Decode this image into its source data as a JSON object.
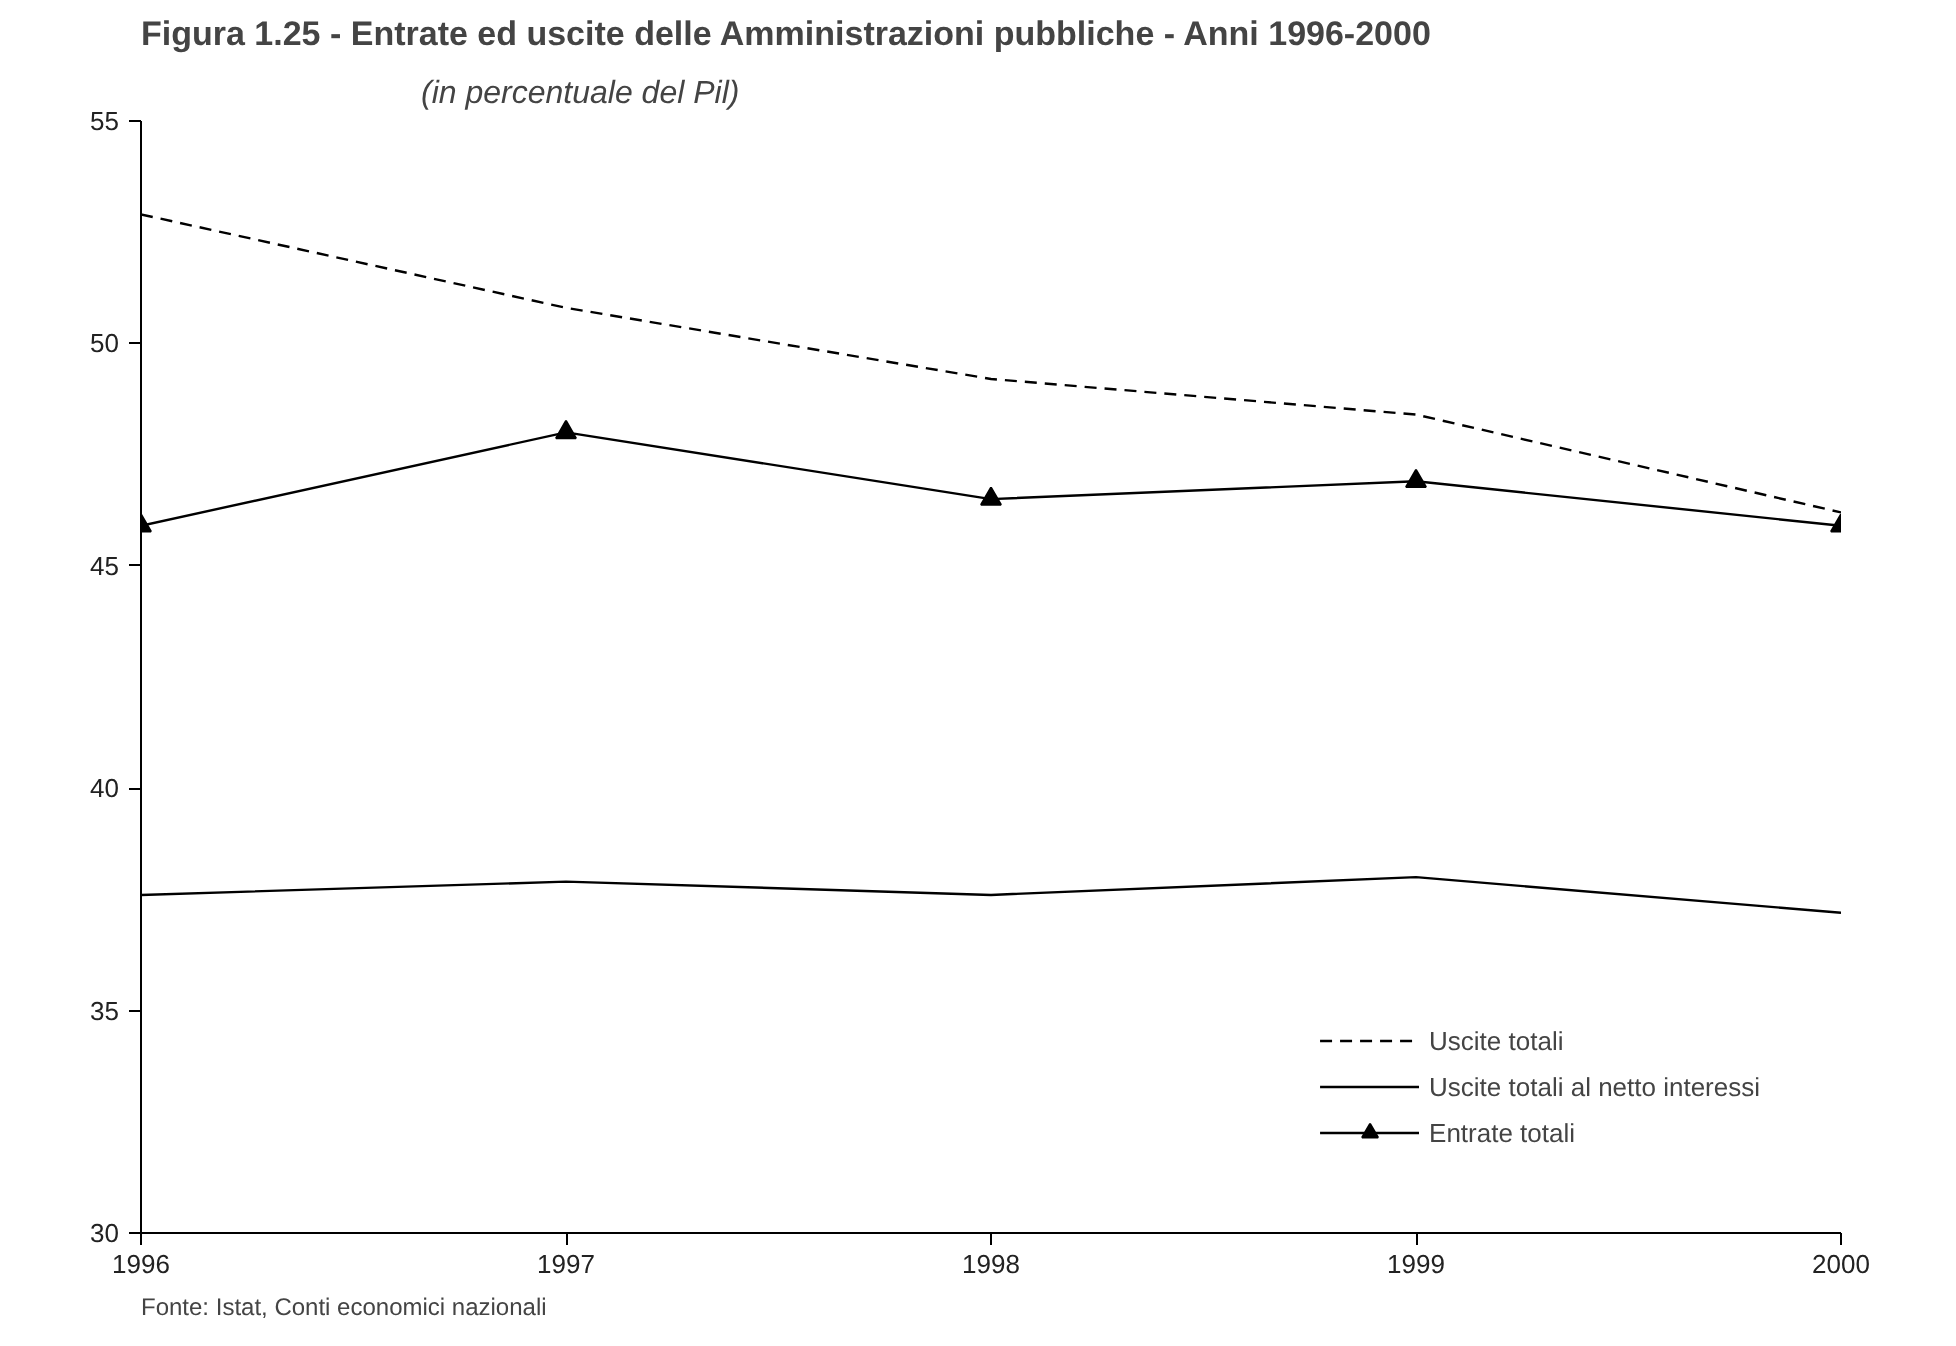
{
  "chart_data": {
    "type": "line",
    "title": "Figura 1.25 - Entrate ed uscite delle Amministrazioni pubbliche - Anni 1996-2000",
    "subtitle": "(in percentuale del Pil)",
    "x": [
      1996,
      1997,
      1998,
      1999,
      2000
    ],
    "xlim": [
      1996,
      2000
    ],
    "xticks": [
      1996,
      1997,
      1998,
      1999,
      2000
    ],
    "ylim": [
      30,
      55
    ],
    "yticks": [
      30,
      35,
      40,
      45,
      50,
      55
    ],
    "grid": false,
    "legend": "bottom right",
    "series": [
      {
        "name": "Uscite totali",
        "color": "#000000",
        "values": [
          52.9,
          50.8,
          49.2,
          48.4,
          46.2
        ],
        "line_style": "dashed",
        "marker": "none"
      },
      {
        "name": "Uscite totali al netto interessi",
        "color": "#000000",
        "values": [
          37.6,
          37.9,
          37.6,
          38.0,
          37.2
        ],
        "line_style": "solid",
        "marker": "none"
      },
      {
        "name": "Entrate totali",
        "color": "#000000",
        "values": [
          45.9,
          48.0,
          46.5,
          46.9,
          45.9
        ],
        "line_style": "solid",
        "marker": "triangle"
      }
    ],
    "annotations": [
      "Fonte: Istat, Conti economici nazionali"
    ]
  }
}
